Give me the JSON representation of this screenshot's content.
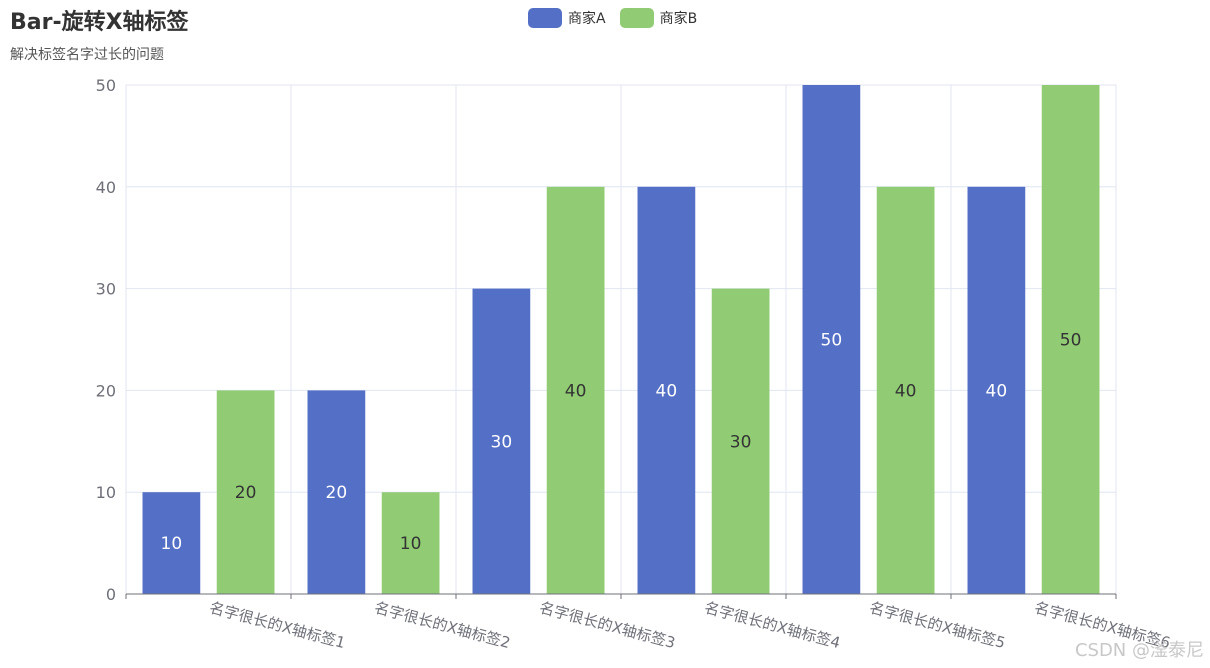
{
  "title": "Bar-旋转X轴标签",
  "subtitle": "解决标签名字过长的问题",
  "watermark": "CSDN @滏泰尼",
  "legend": [
    {
      "name": "商家A",
      "color": "#5470c6"
    },
    {
      "name": "商家B",
      "color": "#91cc75"
    }
  ],
  "chart_data": {
    "type": "bar",
    "categories": [
      "名字很长的X轴标签1",
      "名字很长的X轴标签2",
      "名字很长的X轴标签3",
      "名字很长的X轴标签4",
      "名字很长的X轴标签5",
      "名字很长的X轴标签6"
    ],
    "series": [
      {
        "name": "商家A",
        "values": [
          10,
          20,
          30,
          40,
          50,
          40
        ],
        "color": "#5470c6",
        "label_color": "#ffffff"
      },
      {
        "name": "商家B",
        "values": [
          20,
          10,
          40,
          30,
          40,
          50
        ],
        "color": "#91cc75",
        "label_color": "#333333"
      }
    ],
    "ylim": [
      0,
      50
    ],
    "yticks": [
      0,
      10,
      20,
      30,
      40,
      50
    ],
    "grid": true,
    "legend_position": "top-center",
    "xlabel_rotation": -15
  }
}
